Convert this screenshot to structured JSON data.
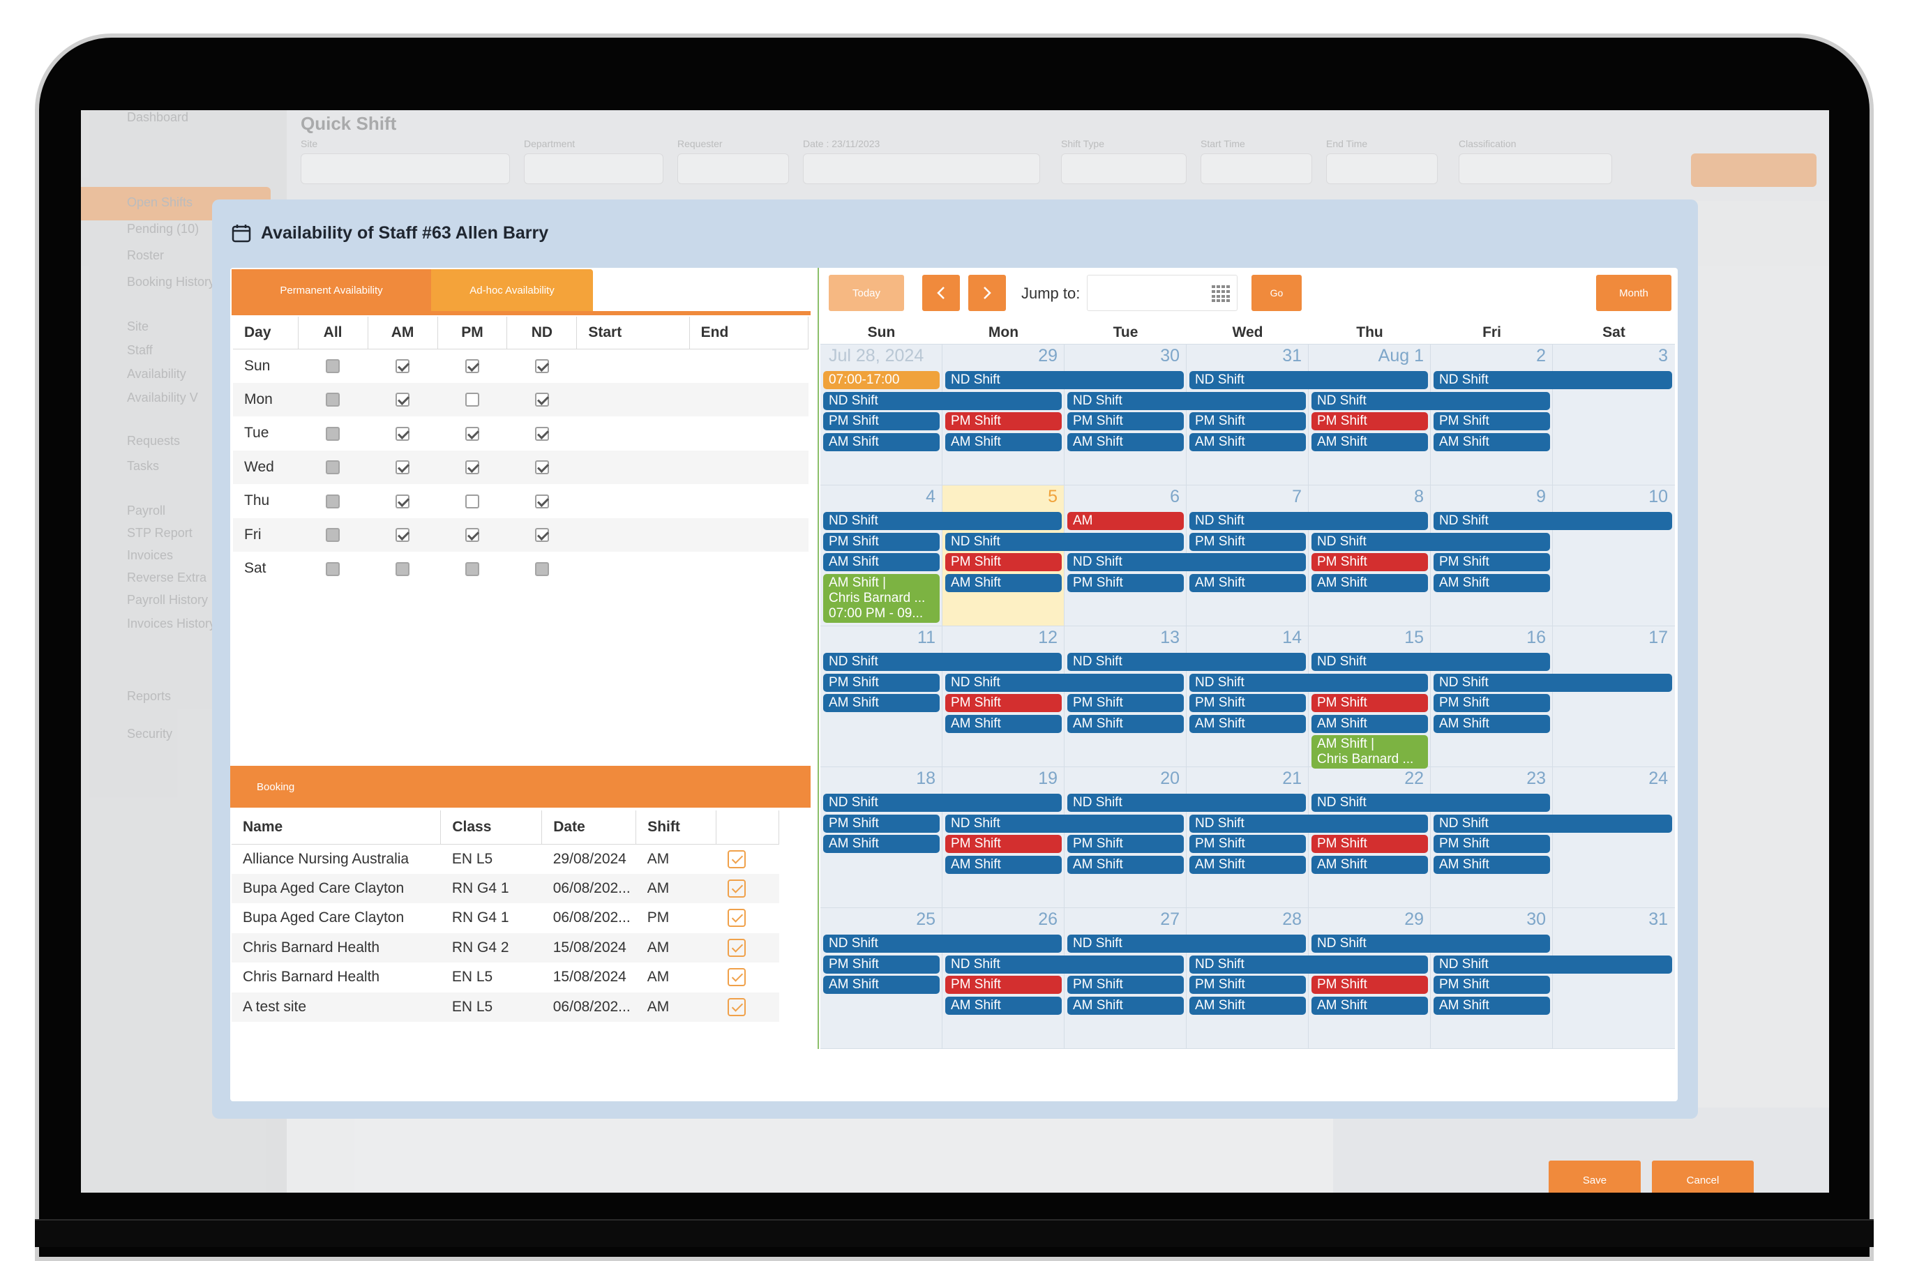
{
  "background": {
    "sidebar_items": [
      "Dashboard",
      "Open Shifts",
      "Pending (10)",
      "Roster",
      "Booking History",
      "Site",
      "Staff",
      "Availability",
      "Availability V",
      "Requests",
      "Tasks",
      "Payroll",
      "STP Report",
      "Invoices",
      "Reverse Extra",
      "Payroll History",
      "Invoices History",
      "Reports",
      "Security"
    ],
    "page_title": "Quick Shift",
    "filter_labels": [
      "Site",
      "Department",
      "Requester",
      "Date : 23/11/2023",
      "Shift Type",
      "Start Time",
      "End Time",
      "Classification"
    ],
    "save_label": "Save"
  },
  "modal": {
    "title": "Availability of Staff #63 Allen Barry",
    "tabs": {
      "permanent": "Permanent Availability",
      "adhoc": "Ad-hoc Availability"
    },
    "availability": {
      "headers": [
        "Day",
        "All",
        "AM",
        "PM",
        "ND",
        "Start",
        "End"
      ],
      "rows": [
        {
          "day": "Sun",
          "all": "grey",
          "am": true,
          "pm": true,
          "nd": true
        },
        {
          "day": "Mon",
          "all": "grey",
          "am": true,
          "pm": false,
          "nd": true
        },
        {
          "day": "Tue",
          "all": "grey",
          "am": true,
          "pm": true,
          "nd": true
        },
        {
          "day": "Wed",
          "all": "grey",
          "am": true,
          "pm": true,
          "nd": true
        },
        {
          "day": "Thu",
          "all": "grey",
          "am": true,
          "pm": false,
          "nd": true
        },
        {
          "day": "Fri",
          "all": "grey",
          "am": true,
          "pm": true,
          "nd": true
        },
        {
          "day": "Sat",
          "all": "grey",
          "am": "grey",
          "pm": "grey",
          "nd": "grey"
        }
      ]
    },
    "booking": {
      "label": "Booking",
      "headers": [
        "Name",
        "Class",
        "Date",
        "Shift"
      ],
      "rows": [
        [
          "Alliance Nursing Australia",
          "EN L5",
          "29/08/2024",
          "AM"
        ],
        [
          "Bupa Aged Care Clayton",
          "RN G4 1",
          "06/08/202...",
          "AM"
        ],
        [
          "Bupa Aged Care Clayton",
          "RN G4 1",
          "06/08/202...",
          "PM"
        ],
        [
          "Chris Barnard Health",
          "RN G4 2",
          "15/08/2024",
          "AM"
        ],
        [
          "Chris Barnard Health",
          "EN L5",
          "15/08/2024",
          "AM"
        ],
        [
          "A test site",
          "EN L5",
          "06/08/202...",
          "AM"
        ]
      ]
    },
    "calendar": {
      "today_label": "Today",
      "prev_icon": "chevron-left-icon",
      "next_icon": "chevron-right-icon",
      "jump_label": "Jump to:",
      "go_label": "Go",
      "month_label": "Month",
      "weekdays": [
        "Sun",
        "Mon",
        "Tue",
        "Wed",
        "Thu",
        "Fri",
        "Sat"
      ],
      "weeks": [
        [
          "Jul 28, 2024",
          "29",
          "30",
          "31",
          "Aug 1",
          "2",
          "3"
        ],
        [
          "4",
          "5",
          "6",
          "7",
          "8",
          "9",
          "10"
        ],
        [
          "11",
          "12",
          "13",
          "14",
          "15",
          "16",
          "17"
        ],
        [
          "18",
          "19",
          "20",
          "21",
          "22",
          "23",
          "24"
        ],
        [
          "25",
          "26",
          "27",
          "28",
          "29",
          "30",
          "31"
        ]
      ],
      "today_cell": [
        1,
        1
      ],
      "events": [
        {
          "week": 0,
          "day": 0,
          "span": 1,
          "slot": 0,
          "color": "orange",
          "text": "07:00-17:00"
        },
        {
          "week": 0,
          "day": 1,
          "span": 2,
          "slot": 0,
          "color": "blue",
          "text": "ND Shift"
        },
        {
          "week": 0,
          "day": 3,
          "span": 2,
          "slot": 0,
          "color": "blue",
          "text": "ND Shift"
        },
        {
          "week": 0,
          "day": 5,
          "span": 2,
          "slot": 0,
          "color": "blue",
          "text": "ND Shift"
        },
        {
          "week": 0,
          "day": 0,
          "span": 2,
          "slot": 1,
          "color": "blue",
          "text": "ND Shift"
        },
        {
          "week": 0,
          "day": 2,
          "span": 2,
          "slot": 1,
          "color": "blue",
          "text": "ND Shift"
        },
        {
          "week": 0,
          "day": 4,
          "span": 2,
          "slot": 1,
          "color": "blue",
          "text": "ND Shift"
        },
        {
          "week": 0,
          "day": 0,
          "span": 1,
          "slot": 2,
          "color": "blue",
          "text": "PM Shift"
        },
        {
          "week": 0,
          "day": 1,
          "span": 1,
          "slot": 2,
          "color": "red",
          "text": "PM Shift"
        },
        {
          "week": 0,
          "day": 2,
          "span": 1,
          "slot": 2,
          "color": "blue",
          "text": "PM Shift"
        },
        {
          "week": 0,
          "day": 3,
          "span": 1,
          "slot": 2,
          "color": "blue",
          "text": "PM Shift"
        },
        {
          "week": 0,
          "day": 4,
          "span": 1,
          "slot": 2,
          "color": "red",
          "text": "PM Shift"
        },
        {
          "week": 0,
          "day": 5,
          "span": 1,
          "slot": 2,
          "color": "blue",
          "text": "PM Shift"
        },
        {
          "week": 0,
          "day": 0,
          "span": 1,
          "slot": 3,
          "color": "blue",
          "text": "AM Shift"
        },
        {
          "week": 0,
          "day": 1,
          "span": 1,
          "slot": 3,
          "color": "blue",
          "text": "AM Shift"
        },
        {
          "week": 0,
          "day": 2,
          "span": 1,
          "slot": 3,
          "color": "blue",
          "text": "AM Shift"
        },
        {
          "week": 0,
          "day": 3,
          "span": 1,
          "slot": 3,
          "color": "blue",
          "text": "AM Shift"
        },
        {
          "week": 0,
          "day": 4,
          "span": 1,
          "slot": 3,
          "color": "blue",
          "text": "AM Shift"
        },
        {
          "week": 0,
          "day": 5,
          "span": 1,
          "slot": 3,
          "color": "blue",
          "text": "AM Shift"
        },
        {
          "week": 1,
          "day": 0,
          "span": 2,
          "slot": 0,
          "color": "blue",
          "text": "ND Shift"
        },
        {
          "week": 1,
          "day": 2,
          "span": 1,
          "slot": 0,
          "color": "red",
          "text": "AM"
        },
        {
          "week": 1,
          "day": 3,
          "span": 2,
          "slot": 0,
          "color": "blue",
          "text": "ND Shift"
        },
        {
          "week": 1,
          "day": 5,
          "span": 2,
          "slot": 0,
          "color": "blue",
          "text": "ND Shift"
        },
        {
          "week": 1,
          "day": 0,
          "span": 1,
          "slot": 1,
          "color": "blue",
          "text": "PM Shift"
        },
        {
          "week": 1,
          "day": 1,
          "span": 2,
          "slot": 1,
          "color": "blue",
          "text": "ND Shift"
        },
        {
          "week": 1,
          "day": 3,
          "span": 1,
          "slot": 1,
          "color": "blue",
          "text": "PM Shift"
        },
        {
          "week": 1,
          "day": 4,
          "span": 2,
          "slot": 1,
          "color": "blue",
          "text": "ND Shift"
        },
        {
          "week": 1,
          "day": 0,
          "span": 1,
          "slot": 2,
          "color": "blue",
          "text": "AM Shift"
        },
        {
          "week": 1,
          "day": 1,
          "span": 1,
          "slot": 2,
          "color": "red",
          "text": "PM Shift"
        },
        {
          "week": 1,
          "day": 2,
          "span": 2,
          "slot": 2,
          "color": "blue",
          "text": "ND Shift"
        },
        {
          "week": 1,
          "day": 4,
          "span": 1,
          "slot": 2,
          "color": "red",
          "text": "PM Shift"
        },
        {
          "week": 1,
          "day": 5,
          "span": 1,
          "slot": 2,
          "color": "blue",
          "text": "PM Shift"
        },
        {
          "week": 1,
          "day": 1,
          "span": 1,
          "slot": 3,
          "color": "blue",
          "text": "AM Shift"
        },
        {
          "week": 1,
          "day": 2,
          "span": 1,
          "slot": 3,
          "color": "blue",
          "text": "PM Shift"
        },
        {
          "week": 1,
          "day": 3,
          "span": 1,
          "slot": 3,
          "color": "blue",
          "text": "AM Shift"
        },
        {
          "week": 1,
          "day": 4,
          "span": 1,
          "slot": 3,
          "color": "blue",
          "text": "AM Shift"
        },
        {
          "week": 1,
          "day": 5,
          "span": 1,
          "slot": 3,
          "color": "blue",
          "text": "AM Shift"
        },
        {
          "week": 1,
          "day": 0,
          "span": 1,
          "slot": 3,
          "color": "green",
          "text": "AM Shift |\nChris Barnard ...\n07:00 PM - 09..."
        },
        {
          "week": 2,
          "day": 0,
          "span": 2,
          "slot": 0,
          "color": "blue",
          "text": "ND Shift"
        },
        {
          "week": 2,
          "day": 2,
          "span": 2,
          "slot": 0,
          "color": "blue",
          "text": "ND Shift"
        },
        {
          "week": 2,
          "day": 4,
          "span": 2,
          "slot": 0,
          "color": "blue",
          "text": "ND Shift"
        },
        {
          "week": 2,
          "day": 0,
          "span": 1,
          "slot": 1,
          "color": "blue",
          "text": "PM Shift"
        },
        {
          "week": 2,
          "day": 1,
          "span": 2,
          "slot": 1,
          "color": "blue",
          "text": "ND Shift"
        },
        {
          "week": 2,
          "day": 3,
          "span": 2,
          "slot": 1,
          "color": "blue",
          "text": "ND Shift"
        },
        {
          "week": 2,
          "day": 5,
          "span": 2,
          "slot": 1,
          "color": "blue",
          "text": "ND Shift"
        },
        {
          "week": 2,
          "day": 0,
          "span": 1,
          "slot": 2,
          "color": "blue",
          "text": "AM Shift"
        },
        {
          "week": 2,
          "day": 1,
          "span": 1,
          "slot": 2,
          "color": "red",
          "text": "PM Shift"
        },
        {
          "week": 2,
          "day": 2,
          "span": 1,
          "slot": 2,
          "color": "blue",
          "text": "PM Shift"
        },
        {
          "week": 2,
          "day": 3,
          "span": 1,
          "slot": 2,
          "color": "blue",
          "text": "PM Shift"
        },
        {
          "week": 2,
          "day": 4,
          "span": 1,
          "slot": 2,
          "color": "red",
          "text": "PM Shift"
        },
        {
          "week": 2,
          "day": 5,
          "span": 1,
          "slot": 2,
          "color": "blue",
          "text": "PM Shift"
        },
        {
          "week": 2,
          "day": 1,
          "span": 1,
          "slot": 3,
          "color": "blue",
          "text": "AM Shift"
        },
        {
          "week": 2,
          "day": 2,
          "span": 1,
          "slot": 3,
          "color": "blue",
          "text": "AM Shift"
        },
        {
          "week": 2,
          "day": 3,
          "span": 1,
          "slot": 3,
          "color": "blue",
          "text": "AM Shift"
        },
        {
          "week": 2,
          "day": 4,
          "span": 1,
          "slot": 3,
          "color": "blue",
          "text": "AM Shift"
        },
        {
          "week": 2,
          "day": 5,
          "span": 1,
          "slot": 3,
          "color": "blue",
          "text": "AM Shift"
        },
        {
          "week": 2,
          "day": 4,
          "span": 1,
          "slot": 4,
          "color": "green",
          "text": "AM Shift |\nChris Barnard ..."
        },
        {
          "week": 3,
          "day": 0,
          "span": 2,
          "slot": 0,
          "color": "blue",
          "text": "ND Shift"
        },
        {
          "week": 3,
          "day": 2,
          "span": 2,
          "slot": 0,
          "color": "blue",
          "text": "ND Shift"
        },
        {
          "week": 3,
          "day": 4,
          "span": 2,
          "slot": 0,
          "color": "blue",
          "text": "ND Shift"
        },
        {
          "week": 3,
          "day": 0,
          "span": 1,
          "slot": 1,
          "color": "blue",
          "text": "PM Shift"
        },
        {
          "week": 3,
          "day": 1,
          "span": 2,
          "slot": 1,
          "color": "blue",
          "text": "ND Shift"
        },
        {
          "week": 3,
          "day": 3,
          "span": 2,
          "slot": 1,
          "color": "blue",
          "text": "ND Shift"
        },
        {
          "week": 3,
          "day": 5,
          "span": 2,
          "slot": 1,
          "color": "blue",
          "text": "ND Shift"
        },
        {
          "week": 3,
          "day": 0,
          "span": 1,
          "slot": 2,
          "color": "blue",
          "text": "AM Shift"
        },
        {
          "week": 3,
          "day": 1,
          "span": 1,
          "slot": 2,
          "color": "red",
          "text": "PM Shift"
        },
        {
          "week": 3,
          "day": 2,
          "span": 1,
          "slot": 2,
          "color": "blue",
          "text": "PM Shift"
        },
        {
          "week": 3,
          "day": 3,
          "span": 1,
          "slot": 2,
          "color": "blue",
          "text": "PM Shift"
        },
        {
          "week": 3,
          "day": 4,
          "span": 1,
          "slot": 2,
          "color": "red",
          "text": "PM Shift"
        },
        {
          "week": 3,
          "day": 5,
          "span": 1,
          "slot": 2,
          "color": "blue",
          "text": "PM Shift"
        },
        {
          "week": 3,
          "day": 1,
          "span": 1,
          "slot": 3,
          "color": "blue",
          "text": "AM Shift"
        },
        {
          "week": 3,
          "day": 2,
          "span": 1,
          "slot": 3,
          "color": "blue",
          "text": "AM Shift"
        },
        {
          "week": 3,
          "day": 3,
          "span": 1,
          "slot": 3,
          "color": "blue",
          "text": "AM Shift"
        },
        {
          "week": 3,
          "day": 4,
          "span": 1,
          "slot": 3,
          "color": "blue",
          "text": "AM Shift"
        },
        {
          "week": 3,
          "day": 5,
          "span": 1,
          "slot": 3,
          "color": "blue",
          "text": "AM Shift"
        },
        {
          "week": 4,
          "day": 0,
          "span": 2,
          "slot": 0,
          "color": "blue",
          "text": "ND Shift"
        },
        {
          "week": 4,
          "day": 2,
          "span": 2,
          "slot": 0,
          "color": "blue",
          "text": "ND Shift"
        },
        {
          "week": 4,
          "day": 4,
          "span": 2,
          "slot": 0,
          "color": "blue",
          "text": "ND Shift"
        },
        {
          "week": 4,
          "day": 0,
          "span": 1,
          "slot": 1,
          "color": "blue",
          "text": "PM Shift"
        },
        {
          "week": 4,
          "day": 1,
          "span": 2,
          "slot": 1,
          "color": "blue",
          "text": "ND Shift"
        },
        {
          "week": 4,
          "day": 3,
          "span": 2,
          "slot": 1,
          "color": "blue",
          "text": "ND Shift"
        },
        {
          "week": 4,
          "day": 5,
          "span": 2,
          "slot": 1,
          "color": "blue",
          "text": "ND Shift"
        },
        {
          "week": 4,
          "day": 0,
          "span": 1,
          "slot": 2,
          "color": "blue",
          "text": "AM Shift"
        },
        {
          "week": 4,
          "day": 1,
          "span": 1,
          "slot": 2,
          "color": "red",
          "text": "PM Shift"
        },
        {
          "week": 4,
          "day": 2,
          "span": 1,
          "slot": 2,
          "color": "blue",
          "text": "PM Shift"
        },
        {
          "week": 4,
          "day": 3,
          "span": 1,
          "slot": 2,
          "color": "blue",
          "text": "PM Shift"
        },
        {
          "week": 4,
          "day": 4,
          "span": 1,
          "slot": 2,
          "color": "red",
          "text": "PM Shift"
        },
        {
          "week": 4,
          "day": 5,
          "span": 1,
          "slot": 2,
          "color": "blue",
          "text": "PM Shift"
        },
        {
          "week": 4,
          "day": 1,
          "span": 1,
          "slot": 3,
          "color": "blue",
          "text": "AM Shift"
        },
        {
          "week": 4,
          "day": 2,
          "span": 1,
          "slot": 3,
          "color": "blue",
          "text": "AM Shift"
        },
        {
          "week": 4,
          "day": 3,
          "span": 1,
          "slot": 3,
          "color": "blue",
          "text": "AM Shift"
        },
        {
          "week": 4,
          "day": 4,
          "span": 1,
          "slot": 3,
          "color": "blue",
          "text": "AM Shift"
        },
        {
          "week": 4,
          "day": 5,
          "span": 1,
          "slot": 3,
          "color": "blue",
          "text": "AM Shift"
        }
      ]
    },
    "footer": {
      "save_label": "Save",
      "cancel_label": "Cancel"
    }
  },
  "colors": {
    "accent": "#f08a3c",
    "shift_blue": "#1f6aa5",
    "shift_red": "#d32f2f",
    "shift_green": "#7cb342",
    "shift_orange": "#f0a23b",
    "today_bg": "#fdf0c4"
  }
}
